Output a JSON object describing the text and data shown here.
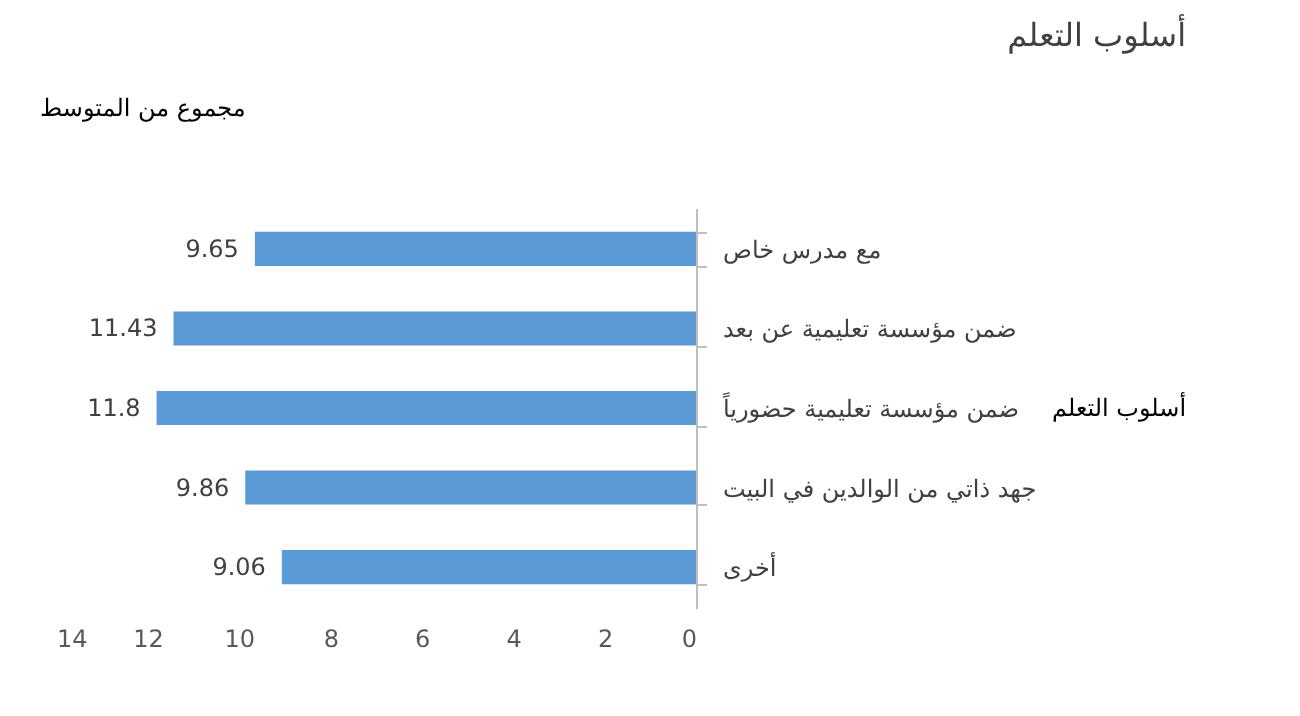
{
  "chart_data": {
    "type": "bar",
    "orientation": "horizontal",
    "title": "أسلوب التعلم",
    "categories": [
      "مع مدرس خاص",
      "ضمن مؤسسة تعليمية عن بعد",
      "ضمن مؤسسة تعليمية حضورياً",
      "جهد ذاتي من الوالدين في البيت",
      "أخرى"
    ],
    "values": [
      9.65,
      11.43,
      11.8,
      9.86,
      9.06
    ],
    "color": "#5b9bd5",
    "xlim": [
      14,
      0
    ],
    "xticks": [
      0,
      2,
      4,
      6,
      8,
      10,
      12,
      14
    ],
    "grid": false,
    "data_labels": true,
    "annotations": [
      "مجموع من المتوسط",
      "أسلوب التعلم"
    ]
  }
}
